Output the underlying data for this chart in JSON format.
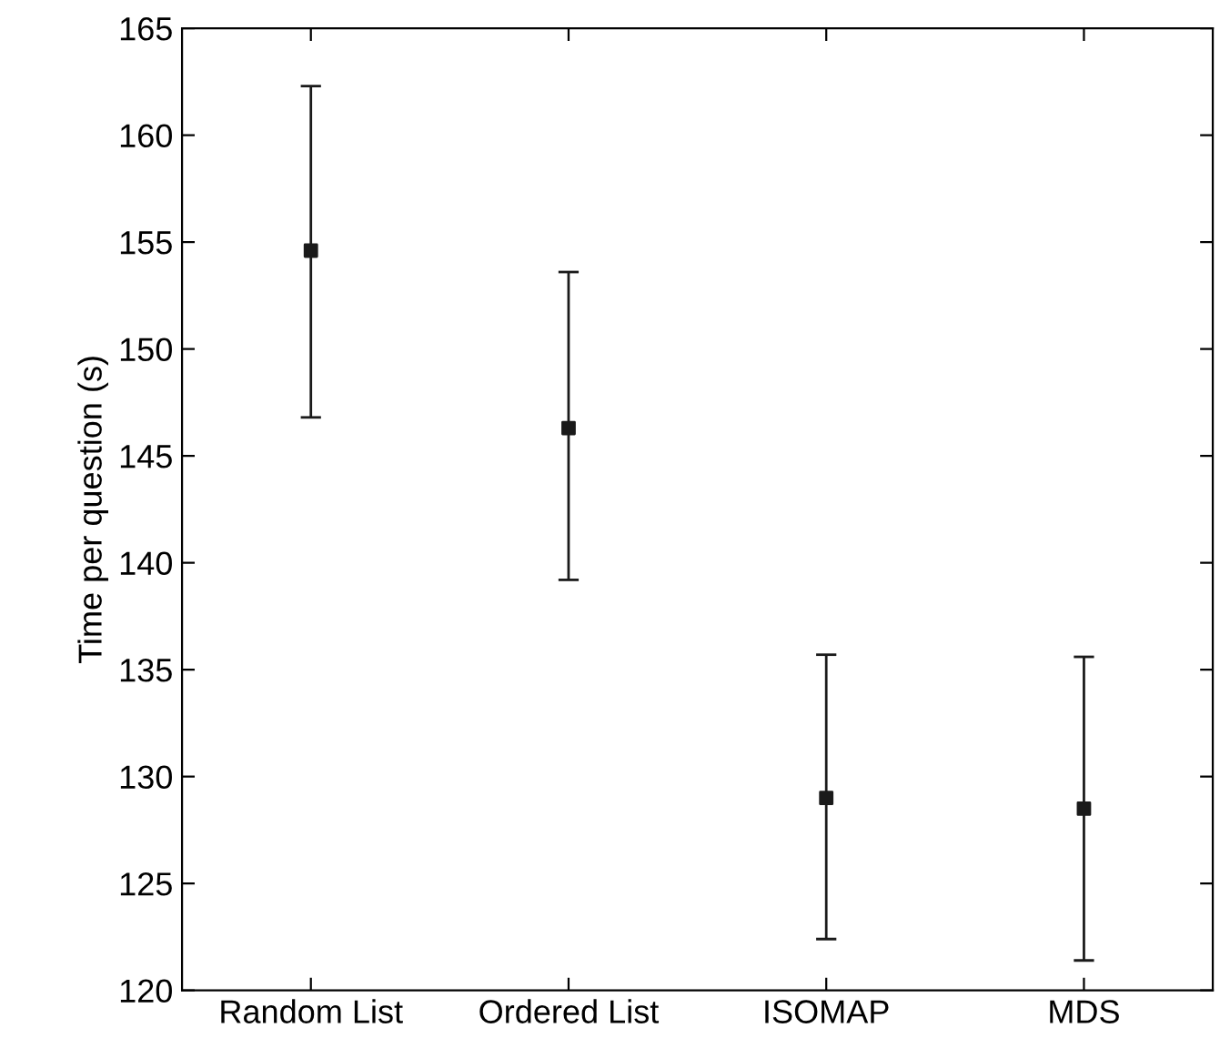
{
  "chart_data": {
    "type": "scatter",
    "ylabel": "Time per question (s)",
    "categories": [
      "Random List",
      "Ordered List",
      "ISOMAP",
      "MDS"
    ],
    "series": [
      {
        "color": "#1a1a1a",
        "values": [
          154.6,
          146.3,
          129.0,
          128.5
        ],
        "errors": [
          [
            146.8,
            162.3
          ],
          [
            139.2,
            153.6
          ],
          [
            122.4,
            135.7
          ],
          [
            121.4,
            135.6
          ]
        ]
      }
    ],
    "marker": "square",
    "ylim": [
      120,
      165
    ],
    "yticks": [
      120,
      125,
      130,
      135,
      140,
      145,
      150,
      155,
      160,
      165
    ],
    "grid": false,
    "legend": false
  }
}
